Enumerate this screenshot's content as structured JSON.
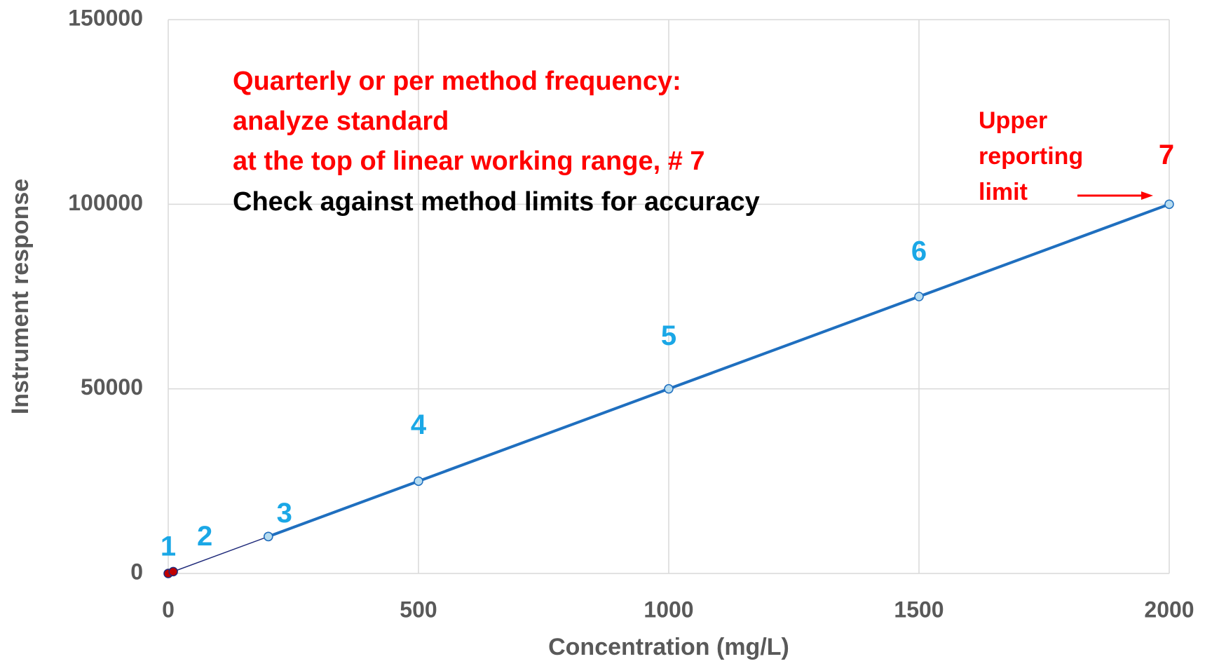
{
  "chart_data": {
    "type": "line",
    "x_label": "Concentration (mg/L)",
    "y_label": "Instrument response",
    "xlim": [
      0,
      2000
    ],
    "xticks": [
      0,
      500,
      1000,
      1500,
      2000
    ],
    "ylim": [
      0,
      150000
    ],
    "yticks": [
      0,
      50000,
      100000,
      150000
    ],
    "grid": true,
    "series": [
      {
        "x": [
          0,
          10,
          200
        ],
        "values": [
          0,
          500,
          10000
        ],
        "color": "#1f2a7a",
        "marker_color": "#c00000",
        "labels": [
          "1",
          "2",
          "3"
        ]
      },
      {
        "x": [
          200,
          500,
          1000,
          1500,
          2000
        ],
        "values": [
          10000,
          25000,
          50000,
          75000,
          100000
        ],
        "color": "#1f6fbf",
        "marker_color": "#b7dcf0",
        "labels": [
          null,
          "4",
          "5",
          "6",
          "7"
        ]
      }
    ],
    "annotations": [
      {
        "lines": [
          "Quarterly or per method frequency:",
          "analyze standard",
          "at the top of linear working range, # 7"
        ],
        "color": "#ff0000"
      },
      {
        "lines": [
          "Check against method limits for accuracy"
        ],
        "color": "#000000"
      },
      {
        "lines": [
          "Upper",
          "reporting",
          "limit"
        ],
        "color": "#ff0000"
      }
    ]
  }
}
